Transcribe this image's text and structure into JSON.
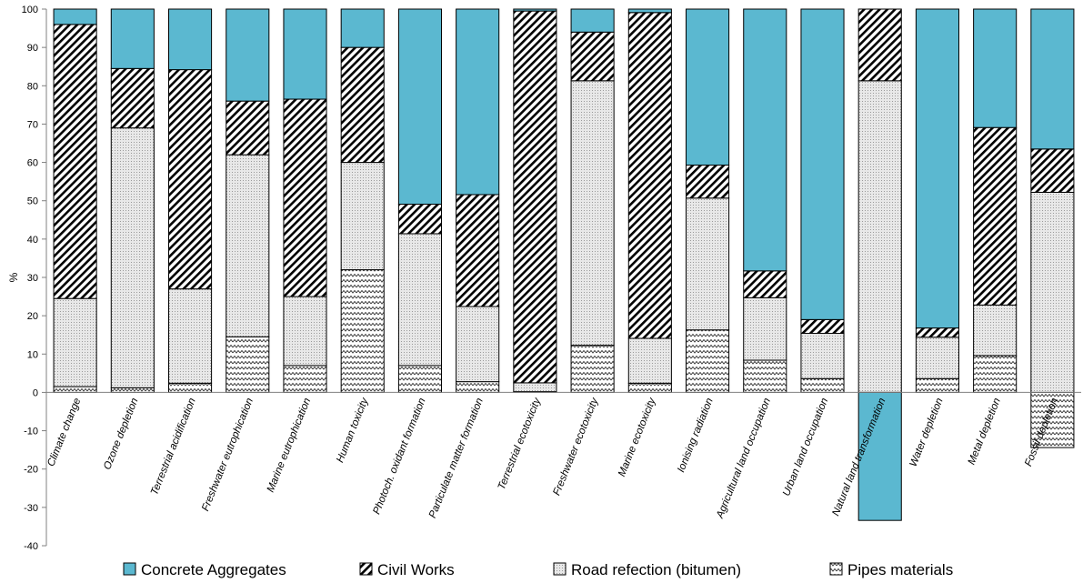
{
  "chart_data": {
    "type": "bar",
    "stacked": true,
    "title": "",
    "xlabel": "",
    "ylabel": "%",
    "ylim": [
      -40,
      100
    ],
    "yticks": [
      100,
      90,
      80,
      70,
      60,
      50,
      40,
      30,
      20,
      10,
      0,
      -10,
      -20,
      -30,
      -40
    ],
    "grid": false,
    "legend_position": "bottom",
    "categories": [
      "Climate change",
      "Ozone depletion",
      "Terrestrial acidification",
      "Freshwater eutrophication",
      "Marine eutrophication",
      "Human toxicity",
      "Photoch. oxidant formation",
      "Particulate matter formation",
      "Terrestrial ecotoxicity",
      "Freshwater ecotoxicity",
      "Marine ecotoxicity",
      "Ionising radiation",
      "Agricultural land occupation",
      "Urban land occupation",
      "Natural land transformation",
      "Water depletion",
      "Metal depletion",
      "Fossil depletion"
    ],
    "series": [
      {
        "name": "Pipes materials",
        "pattern": "zigzag",
        "color": "#ffffff",
        "values": [
          1.5,
          1.2,
          2.4,
          14.5,
          7,
          32,
          7,
          2.8,
          0.2,
          12.3,
          2.4,
          16.3,
          8.4,
          3.6,
          0,
          3.6,
          9.6,
          -14.4
        ]
      },
      {
        "name": "Road refection (bitumen)",
        "pattern": "dots",
        "color": "#e8e8e8",
        "values": [
          23,
          67.8,
          24.6,
          47.5,
          18,
          28,
          34.4,
          19.6,
          2.3,
          69,
          11.7,
          34.4,
          16.3,
          11.8,
          81.3,
          10.8,
          13.2,
          52.2
        ]
      },
      {
        "name": "Civil Works",
        "pattern": "diagonal",
        "color": "#ffffff",
        "values": [
          71.5,
          15.5,
          57.2,
          14,
          51.5,
          30,
          7.7,
          29.2,
          97,
          12.7,
          85,
          8.6,
          7,
          3.6,
          18.7,
          2.4,
          46.3,
          11.3
        ]
      },
      {
        "name": "Concrete Aggregates",
        "pattern": "solid",
        "color": "#5bb8d0",
        "values": [
          4,
          15.5,
          15.8,
          24,
          23.5,
          10,
          50.9,
          48.4,
          0.5,
          6,
          0.9,
          40.7,
          68.3,
          81,
          -33.4,
          83.2,
          30.9,
          36.5
        ]
      }
    ]
  },
  "legend": [
    {
      "label": "Concrete Aggregates",
      "pattern": "solid"
    },
    {
      "label": "Civil Works",
      "pattern": "diagonal"
    },
    {
      "label": "Road refection (bitumen)",
      "pattern": "dots"
    },
    {
      "label": "Pipes materials",
      "pattern": "zigzag"
    }
  ],
  "colors": {
    "concrete": "#5bb8d0",
    "road_fill": "#e8e8e8",
    "axis": "#808080"
  }
}
